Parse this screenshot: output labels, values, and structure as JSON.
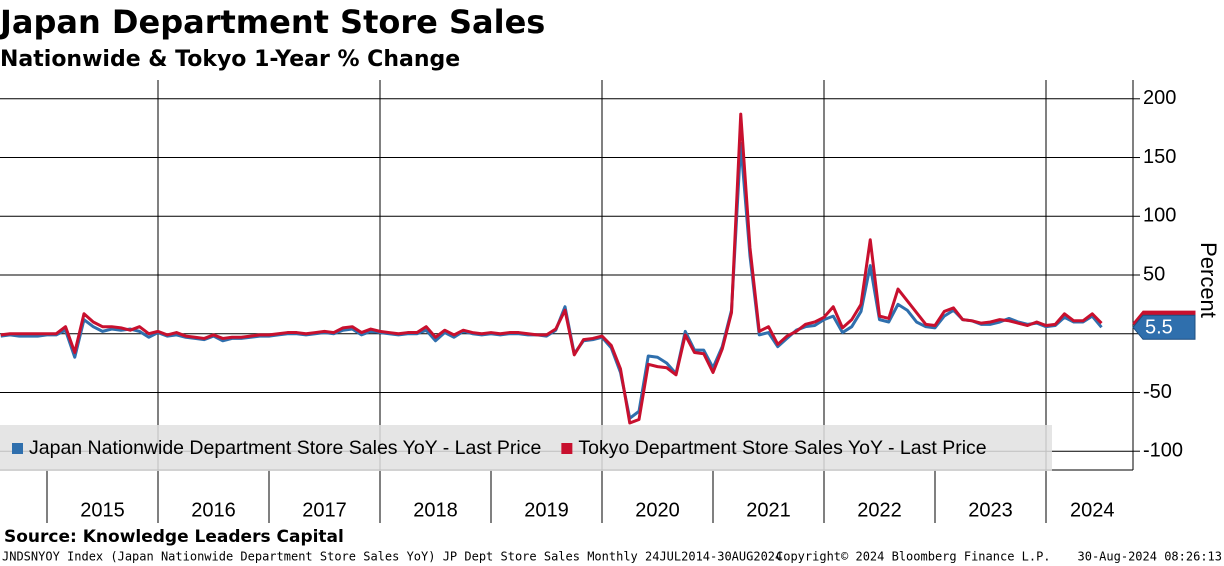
{
  "chart_data": {
    "type": "line",
    "title": "Japan Department Store Sales",
    "subtitle": "Nationwide & Tokyo 1-Year % Change",
    "y_axis_label": "Percent",
    "categories": [
      null,
      null,
      null,
      null,
      null,
      null,
      null,
      null,
      null,
      null,
      null,
      "2015",
      null,
      null,
      null,
      null,
      null,
      null,
      null,
      null,
      null,
      null,
      null,
      "2016",
      null,
      null,
      null,
      null,
      null,
      null,
      null,
      null,
      null,
      null,
      null,
      "2017",
      null,
      null,
      null,
      null,
      null,
      null,
      null,
      null,
      null,
      null,
      null,
      "2018",
      null,
      null,
      null,
      null,
      null,
      null,
      null,
      null,
      null,
      null,
      null,
      "2019",
      null,
      null,
      null,
      null,
      null,
      null,
      null,
      null,
      null,
      null,
      null,
      "2020",
      null,
      null,
      null,
      null,
      null,
      null,
      null,
      null,
      null,
      null,
      null,
      "2021",
      null,
      null,
      null,
      null,
      null,
      null,
      null,
      null,
      null,
      null,
      null,
      "2022",
      null,
      null,
      null,
      null,
      null,
      null,
      null,
      null,
      null,
      null,
      null,
      "2023",
      null,
      null,
      null,
      null,
      null,
      null,
      null,
      null,
      null,
      null,
      "2024",
      null
    ],
    "series": [
      {
        "name": "Japan Nationwide Department Store Sales YoY - Last Price",
        "color": "#2f6fad",
        "values": [
          -2,
          -1,
          -2,
          -2,
          -2,
          -1,
          -1,
          3,
          -20,
          12,
          6,
          2,
          4,
          3,
          4,
          2,
          -3,
          1,
          -2,
          -1,
          -3,
          -4,
          -5,
          -2,
          -6,
          -4,
          -4,
          -3,
          -2,
          -2,
          -1,
          0,
          0,
          -1,
          0,
          1,
          0,
          3,
          4,
          -1,
          2,
          1,
          0,
          -1,
          0,
          0,
          3,
          -6,
          1,
          -3,
          2,
          0,
          -1,
          0,
          -1,
          0,
          0,
          -1,
          -1,
          -2,
          3,
          23,
          -17,
          -6,
          -5,
          -3,
          -12,
          -33,
          -72,
          -66,
          -19,
          -20,
          -25,
          -34,
          2,
          -14,
          -14,
          -29,
          -11,
          20,
          162,
          66,
          -1,
          1,
          -11,
          -4,
          3,
          6,
          7,
          12,
          15,
          1,
          6,
          19,
          58,
          12,
          10,
          25,
          20,
          10,
          6,
          5,
          15,
          20,
          12,
          11,
          8,
          8,
          10,
          13,
          10,
          8,
          9,
          6,
          7,
          14,
          10,
          10,
          15,
          5.5
        ]
      },
      {
        "name": "Tokyo Department Store Sales YoY - Last Price",
        "color": "#c8102e",
        "values": [
          -1,
          0,
          0,
          0,
          0,
          0,
          0,
          6,
          -16,
          17,
          10,
          6,
          6,
          5,
          3,
          6,
          0,
          2,
          -1,
          1,
          -2,
          -3,
          -4,
          -1,
          -4,
          -3,
          -3,
          -2,
          -1,
          -1,
          0,
          1,
          1,
          0,
          1,
          2,
          1,
          5,
          6,
          1,
          4,
          2,
          1,
          0,
          1,
          1,
          6,
          -3,
          3,
          -1,
          3,
          1,
          0,
          1,
          0,
          1,
          1,
          0,
          -1,
          -1,
          4,
          20,
          -18,
          -5,
          -4,
          -2,
          -10,
          -30,
          -76,
          -73,
          -26,
          -28,
          -29,
          -35,
          -1,
          -16,
          -17,
          -33,
          -13,
          18,
          187,
          73,
          2,
          6,
          -9,
          -2,
          2,
          8,
          10,
          14,
          23,
          5,
          12,
          25,
          80,
          15,
          13,
          38,
          28,
          18,
          8,
          7,
          19,
          22,
          12,
          11,
          9,
          10,
          12,
          11,
          9,
          7,
          10,
          7,
          8,
          17,
          11,
          11,
          17,
          9
        ]
      }
    ],
    "ylim": [
      -116,
      216
    ],
    "yticks": [
      -100,
      -50,
      0,
      50,
      100,
      150,
      200
    ],
    "grid": true,
    "legend": "lower left",
    "source": "Source: Knowledge Leaders Capital",
    "footer": [
      "JNDSNYOY Index (Japan Nationwide Department Store Sales YoY) JP Dept Store Sales  Monthly 24JUL2014-30AUG2024",
      "Copyright© 2024 Bloomberg Finance L.P.",
      "30-Aug-2024 08:26:13"
    ]
  }
}
